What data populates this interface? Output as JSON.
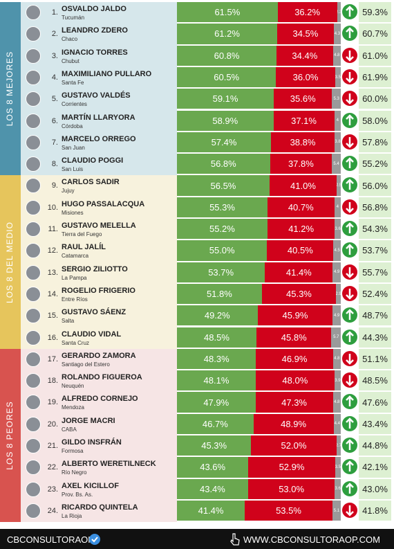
{
  "groups": [
    {
      "label": "LOS 8 MEJORES",
      "color": "#4f93ab",
      "background": "#d6e7eb",
      "rows": [
        {
          "rank": "1.",
          "name": "OSVALDO JALDO",
          "province": "Tucumán",
          "approve": 61.5,
          "approve_label": "61.5%",
          "disapprove": 36.2,
          "disapprove_label": "36.2%",
          "other": 2.3,
          "trend": "up",
          "previous": 59.3,
          "previous_label": "59.3%"
        },
        {
          "rank": "2.",
          "name": "LEANDRO ZDERO",
          "province": "Chaco",
          "approve": 61.2,
          "approve_label": "61.2%",
          "disapprove": 34.5,
          "disapprove_label": "34.5%",
          "other": 4.3,
          "trend": "up",
          "previous": 60.7,
          "previous_label": "60.7%"
        },
        {
          "rank": "3.",
          "name": "IGNACIO TORRES",
          "province": "Chubut",
          "approve": 60.8,
          "approve_label": "60.8%",
          "disapprove": 34.4,
          "disapprove_label": "34.4%",
          "other": 4.8,
          "trend": "down",
          "previous": 61.0,
          "previous_label": "61.0%"
        },
        {
          "rank": "4.",
          "name": "MAXIMILIANO PULLARO",
          "province": "Santa Fe",
          "approve": 60.5,
          "approve_label": "60.5%",
          "disapprove": 36.0,
          "disapprove_label": "36.0%",
          "other": 3.5,
          "trend": "down",
          "previous": 61.9,
          "previous_label": "61.9%"
        },
        {
          "rank": "5.",
          "name": "GUSTAVO VALDÉS",
          "province": "Corrientes",
          "approve": 59.1,
          "approve_label": "59.1%",
          "disapprove": 35.6,
          "disapprove_label": "35.6%",
          "other": 5.3,
          "trend": "down",
          "previous": 60.0,
          "previous_label": "60.0%"
        },
        {
          "rank": "6.",
          "name": "MARTÍN LLARYORA",
          "province": "Córdoba",
          "approve": 58.9,
          "approve_label": "58.9%",
          "disapprove": 37.1,
          "disapprove_label": "37.1%",
          "other": 4.0,
          "trend": "up",
          "previous": 58.0,
          "previous_label": "58.0%"
        },
        {
          "rank": "7.",
          "name": "MARCELO ORREGO",
          "province": "San Juan",
          "approve": 57.4,
          "approve_label": "57.4%",
          "disapprove": 38.8,
          "disapprove_label": "38.8%",
          "other": 3.8,
          "trend": "down",
          "previous": 57.8,
          "previous_label": "57.8%"
        },
        {
          "rank": "8.",
          "name": "CLAUDIO POGGI",
          "province": "San Luis",
          "approve": 56.8,
          "approve_label": "56.8%",
          "disapprove": 37.8,
          "disapprove_label": "37.8%",
          "other": 5.4,
          "trend": "up",
          "previous": 55.2,
          "previous_label": "55.2%"
        }
      ]
    },
    {
      "label": "LOS 8 DEL MEDIO",
      "color": "#e6c55c",
      "background": "#f7f2dd",
      "rows": [
        {
          "rank": "9.",
          "name": "CARLOS SADIR",
          "province": "Jujuy",
          "approve": 56.5,
          "approve_label": "56.5%",
          "disapprove": 41.0,
          "disapprove_label": "41.0%",
          "other": 2.5,
          "trend": "up",
          "previous": 56.0,
          "previous_label": "56.0%"
        },
        {
          "rank": "10.",
          "name": "HUGO PASSALACQUA",
          "province": "Misiones",
          "approve": 55.3,
          "approve_label": "55.3%",
          "disapprove": 40.7,
          "disapprove_label": "40.7%",
          "other": 4.0,
          "trend": "down",
          "previous": 56.8,
          "previous_label": "56.8%"
        },
        {
          "rank": "11.",
          "name": "GUSTAVO MELELLA",
          "province": "Tierra del Fuego",
          "approve": 55.2,
          "approve_label": "55.2%",
          "disapprove": 41.2,
          "disapprove_label": "41.2%",
          "other": 3.6,
          "trend": "up",
          "previous": 54.3,
          "previous_label": "54.3%"
        },
        {
          "rank": "12.",
          "name": "RAUL JALÍL",
          "province": "Catamarca",
          "approve": 55.0,
          "approve_label": "55.0%",
          "disapprove": 40.5,
          "disapprove_label": "40.5%",
          "other": 4.5,
          "trend": "up",
          "previous": 53.7,
          "previous_label": "53.7%"
        },
        {
          "rank": "13.",
          "name": "SERGIO ZILIOTTO",
          "province": "La Pampa",
          "approve": 53.7,
          "approve_label": "53.7%",
          "disapprove": 41.4,
          "disapprove_label": "41.4%",
          "other": 4.9,
          "trend": "down",
          "previous": 55.7,
          "previous_label": "55.7%"
        },
        {
          "rank": "14.",
          "name": "ROGELIO FRIGERIO",
          "province": "Entre Ríos",
          "approve": 51.8,
          "approve_label": "51.8%",
          "disapprove": 45.3,
          "disapprove_label": "45.3%",
          "other": 2.9,
          "trend": "down",
          "previous": 52.4,
          "previous_label": "52.4%"
        },
        {
          "rank": "15.",
          "name": "GUSTAVO SÁENZ",
          "province": "Salta",
          "approve": 49.2,
          "approve_label": "49.2%",
          "disapprove": 45.9,
          "disapprove_label": "45.9%",
          "other": 4.9,
          "trend": "up",
          "previous": 48.7,
          "previous_label": "48.7%"
        },
        {
          "rank": "16.",
          "name": "CLAUDIO VIDAL",
          "province": "Santa Cruz",
          "approve": 48.5,
          "approve_label": "48.5%",
          "disapprove": 45.8,
          "disapprove_label": "45.8%",
          "other": 5.7,
          "trend": "up",
          "previous": 44.3,
          "previous_label": "44.3%"
        }
      ]
    },
    {
      "label": "LOS 8 PEORES",
      "color": "#d8534f",
      "background": "#f6e5e5",
      "rows": [
        {
          "rank": "17.",
          "name": "GERARDO ZAMORA",
          "province": "Santiago del Estero",
          "approve": 48.3,
          "approve_label": "48.3%",
          "disapprove": 46.9,
          "disapprove_label": "46.9%",
          "other": 4.8,
          "trend": "down",
          "previous": 51.1,
          "previous_label": "51.1%"
        },
        {
          "rank": "18.",
          "name": "ROLANDO FIGUEROA",
          "province": "Neuquén",
          "approve": 48.1,
          "approve_label": "48.1%",
          "disapprove": 48.0,
          "disapprove_label": "48.0%",
          "other": 3.9,
          "trend": "down",
          "previous": 48.5,
          "previous_label": "48.5%"
        },
        {
          "rank": "19.",
          "name": "ALFREDO CORNEJO",
          "province": "Mendoza",
          "approve": 47.9,
          "approve_label": "47.9%",
          "disapprove": 47.3,
          "disapprove_label": "47.3%",
          "other": 4.8,
          "trend": "up",
          "previous": 47.6,
          "previous_label": "47.6%"
        },
        {
          "rank": "20.",
          "name": "JORGE MACRI",
          "province": "CABA",
          "approve": 46.7,
          "approve_label": "46.7%",
          "disapprove": 48.9,
          "disapprove_label": "48.9%",
          "other": 4.4,
          "trend": "up",
          "previous": 43.4,
          "previous_label": "43.4%"
        },
        {
          "rank": "21.",
          "name": "GILDO INSFRÁN",
          "province": "Formosa",
          "approve": 45.3,
          "approve_label": "45.3%",
          "disapprove": 52.0,
          "disapprove_label": "52.0%",
          "other": 2.7,
          "trend": "up",
          "previous": 44.8,
          "previous_label": "44.8%"
        },
        {
          "rank": "22.",
          "name": "ALBERTO WERETILNECK",
          "province": "Río Negro",
          "approve": 43.6,
          "approve_label": "43.6%",
          "disapprove": 52.9,
          "disapprove_label": "52.9%",
          "other": 3.5,
          "trend": "up",
          "previous": 42.1,
          "previous_label": "42.1%"
        },
        {
          "rank": "23.",
          "name": "AXEL KICILLOF",
          "province": "Prov. Bs. As.",
          "approve": 43.4,
          "approve_label": "43.4%",
          "disapprove": 53.0,
          "disapprove_label": "53.0%",
          "other": 3.6,
          "trend": "up",
          "previous": 43.0,
          "previous_label": "43.0%"
        },
        {
          "rank": "24.",
          "name": "RICARDO QUINTELA",
          "province": "La Rioja",
          "approve": 41.4,
          "approve_label": "41.4%",
          "disapprove": 53.5,
          "disapprove_label": "53.5%",
          "other": 5.1,
          "trend": "down",
          "previous": 41.8,
          "previous_label": "41.8%"
        }
      ]
    }
  ],
  "colors": {
    "approve": "#6aa84f",
    "disapprove": "#d0021b",
    "other": "#9a9a9a",
    "up": "#2e9e3e",
    "down": "#d0021b"
  },
  "footer": {
    "handle": "CBCONSULTORAOK",
    "website": "WWW.CBCONSULTORAOP.COM"
  }
}
